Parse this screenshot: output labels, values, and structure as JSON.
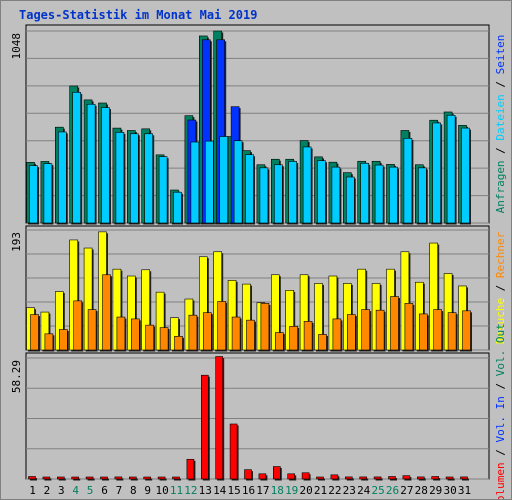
{
  "title": "Tages-Statistik im Monat Mai 2019",
  "colors": {
    "hits": "#008060",
    "files": "#00ccff",
    "pages": "#0033ff",
    "visits": "#ffff00",
    "sites": "#ff8800",
    "kbytes": "#ff0000",
    "grid": "#808080",
    "bg": "#c0c0c0",
    "day_normal": "#000000",
    "day_weekend": "#008060"
  },
  "chart_data": [
    {
      "type": "bar",
      "axis_max_label": "1048",
      "ylim": [
        0,
        1048
      ],
      "right_label_parts": [
        {
          "text": "Anfragen",
          "color": "#008060"
        },
        {
          "text": " / ",
          "color": "#000000"
        },
        {
          "text": "Dateien",
          "color": "#00ccff"
        },
        {
          "text": " / ",
          "color": "#000000"
        },
        {
          "text": "Seiten",
          "color": "#0033ff"
        }
      ],
      "series": [
        {
          "name": "Anfragen",
          "color": "#008060",
          "values": [
            331,
            336,
            523,
            748,
            672,
            655,
            518,
            505,
            514,
            372,
            180,
            586,
            1021,
            1048,
            472,
            395,
            318,
            348,
            348,
            450,
            361,
            332,
            275,
            337,
            337,
            320,
            505,
            318,
            561,
            606,
            533
          ]
        },
        {
          "name": "Dateien",
          "color": "#00ccff",
          "values": [
            313,
            324,
            497,
            713,
            648,
            630,
            495,
            487,
            487,
            362,
            168,
            442,
            447,
            472,
            449,
            373,
            301,
            318,
            336,
            415,
            340,
            305,
            251,
            326,
            316,
            305,
            462,
            301,
            546,
            588,
            518
          ]
        },
        {
          "name": "Seiten",
          "color": "#0033ff",
          "values": [
            0,
            0,
            0,
            0,
            0,
            0,
            0,
            0,
            0,
            0,
            0,
            562,
            1000,
            1000,
            635,
            0,
            0,
            0,
            0,
            0,
            0,
            0,
            0,
            0,
            0,
            0,
            0,
            0,
            0,
            0,
            0
          ]
        }
      ]
    },
    {
      "type": "bar",
      "axis_max_label": "193",
      "ylim": [
        0,
        193
      ],
      "right_label_parts": [
        {
          "text": "Besuche",
          "color": "#ffff00"
        },
        {
          "text": " / ",
          "color": "#000000"
        },
        {
          "text": "Rechner",
          "color": "#ff8800"
        }
      ],
      "series": [
        {
          "name": "Besuche",
          "color": "#ffff00",
          "values": [
            68,
            61,
            94,
            177,
            164,
            190,
            130,
            119,
            129,
            93,
            52,
            82,
            150,
            158,
            112,
            106,
            76,
            121,
            96,
            121,
            107,
            119,
            107,
            130,
            107,
            130,
            158,
            109,
            172,
            123,
            103
          ]
        },
        {
          "name": "Rechner",
          "color": "#ff8800",
          "values": [
            57,
            26,
            33,
            79,
            65,
            121,
            53,
            50,
            40,
            36,
            22,
            56,
            60,
            78,
            53,
            48,
            75,
            28,
            38,
            46,
            25,
            50,
            57,
            65,
            64,
            86,
            75,
            58,
            65,
            60,
            63
          ]
        }
      ]
    },
    {
      "type": "bar",
      "axis_max_label": "58.29",
      "ylim": [
        0,
        58.29
      ],
      "right_label_parts": [
        {
          "text": "Volumen",
          "color": "#ff0000"
        },
        {
          "text": " / ",
          "color": "#000000"
        },
        {
          "text": "Vol. In",
          "color": "#0033ff"
        },
        {
          "text": " / ",
          "color": "#000000"
        },
        {
          "text": "Vol. Out",
          "color": "#008060"
        }
      ],
      "series": [
        {
          "name": "Volumen",
          "color": "#ff0000",
          "values": [
            1.2,
            0.4,
            0.6,
            0.5,
            0.6,
            0.8,
            1.0,
            0.8,
            0.6,
            0.5,
            0.9,
            9.5,
            50.0,
            59.0,
            26.5,
            4.5,
            2.5,
            6.0,
            2.5,
            3.0,
            0.6,
            2.0,
            1.0,
            1.0,
            1.0,
            1.2,
            1.6,
            1.0,
            1.2,
            0.6,
            1.0
          ]
        }
      ]
    }
  ],
  "days": [
    "1",
    "2",
    "3",
    "4",
    "5",
    "6",
    "7",
    "8",
    "9",
    "10",
    "11",
    "12",
    "13",
    "14",
    "15",
    "16",
    "17",
    "18",
    "19",
    "20",
    "21",
    "22",
    "23",
    "24",
    "25",
    "26",
    "27",
    "28",
    "29",
    "30",
    "31"
  ],
  "weekend_days": [
    "4",
    "5",
    "11",
    "12",
    "18",
    "19",
    "25",
    "26"
  ]
}
